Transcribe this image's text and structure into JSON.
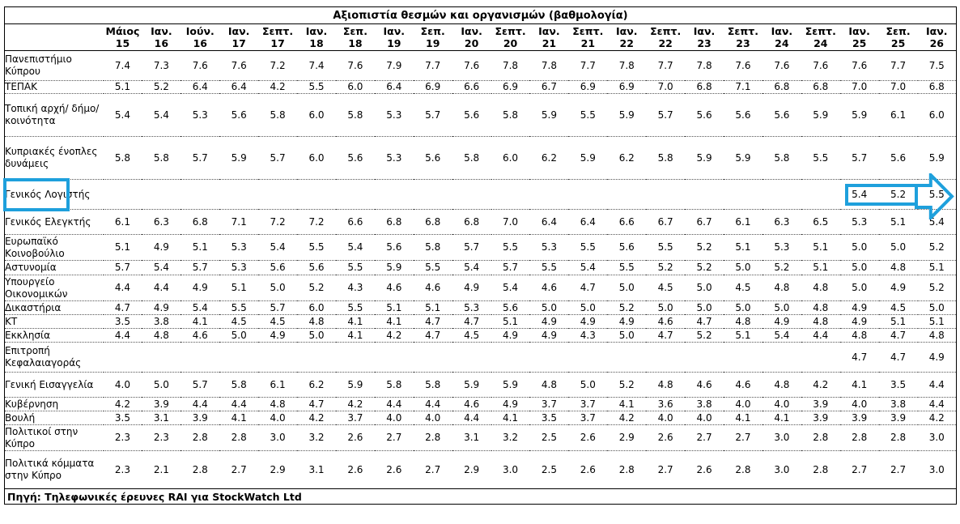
{
  "chart_data": {
    "type": "table",
    "title": "Αξιοπιστία θεσμών και οργανισμών (βαθμολογία)",
    "source": "Πηγή: Τηλεφωνικές έρευνες RAI για StockWatch Ltd",
    "columns": [
      {
        "l1": "Μάιος",
        "l2": "15"
      },
      {
        "l1": "Ιαν.",
        "l2": "16"
      },
      {
        "l1": "Ιούν.",
        "l2": "16"
      },
      {
        "l1": "Ιαν.",
        "l2": "17"
      },
      {
        "l1": "Σεπτ.",
        "l2": "17"
      },
      {
        "l1": "Ιαν.",
        "l2": "18"
      },
      {
        "l1": "Σεπ.",
        "l2": "18"
      },
      {
        "l1": "Ιαν.",
        "l2": "19"
      },
      {
        "l1": "Σεπ.",
        "l2": "19"
      },
      {
        "l1": "Ιαν.",
        "l2": "20"
      },
      {
        "l1": "Σεπτ.",
        "l2": "20"
      },
      {
        "l1": "Ιαν.",
        "l2": "21"
      },
      {
        "l1": "Σεπτ.",
        "l2": "21"
      },
      {
        "l1": "Ιαν.",
        "l2": "22"
      },
      {
        "l1": "Σεπτ.",
        "l2": "22"
      },
      {
        "l1": "Ιαν.",
        "l2": "23"
      },
      {
        "l1": "Σεπτ.",
        "l2": "23"
      },
      {
        "l1": "Ιαν.",
        "l2": "24"
      },
      {
        "l1": "Σεπτ.",
        "l2": "24"
      },
      {
        "l1": "Ιαν.",
        "l2": "25"
      },
      {
        "l1": "Σεπ.",
        "l2": "25"
      },
      {
        "l1": "Ιαν.",
        "l2": "26"
      }
    ],
    "rows": [
      {
        "label": "Πανεπιστήμιο Κύπρου",
        "values": [
          "7.4",
          "7.3",
          "7.6",
          "7.6",
          "7.2",
          "7.4",
          "7.6",
          "7.9",
          "7.7",
          "7.6",
          "7.8",
          "7.8",
          "7.7",
          "7.8",
          "7.7",
          "7.8",
          "7.6",
          "7.6",
          "7.6",
          "7.6",
          "7.7",
          "7.5"
        ]
      },
      {
        "label": "ΤΕΠΑΚ",
        "values": [
          "5.1",
          "5.2",
          "6.4",
          "6.4",
          "4.2",
          "5.5",
          "6.0",
          "6.4",
          "6.9",
          "6.6",
          "6.9",
          "6.7",
          "6.9",
          "6.9",
          "7.0",
          "6.8",
          "7.1",
          "6.8",
          "6.8",
          "7.0",
          "7.0",
          "6.8"
        ]
      },
      {
        "label": "Τοπική αρχή/ δήμο/ κοινότητα",
        "values": [
          "5.4",
          "5.4",
          "5.3",
          "5.6",
          "5.8",
          "6.0",
          "5.8",
          "5.3",
          "5.7",
          "5.6",
          "5.8",
          "5.9",
          "5.5",
          "5.9",
          "5.7",
          "5.6",
          "5.6",
          "5.6",
          "5.9",
          "5.9",
          "6.1",
          "6.0"
        ]
      },
      {
        "label": "Κυπριακές ένοπλες δυνάμεις",
        "values": [
          "5.8",
          "5.8",
          "5.7",
          "5.9",
          "5.7",
          "6.0",
          "5.6",
          "5.3",
          "5.6",
          "5.8",
          "6.0",
          "6.2",
          "5.9",
          "6.2",
          "5.8",
          "5.9",
          "5.9",
          "5.8",
          "5.5",
          "5.7",
          "5.6",
          "5.9"
        ]
      },
      {
        "label": "Γενικός Λογιστής",
        "values": [
          "",
          "",
          "",
          "",
          "",
          "",
          "",
          "",
          "",
          "",
          "",
          "",
          "",
          "",
          "",
          "",
          "",
          "",
          "",
          "5.4",
          "5.2",
          "5.5"
        ]
      },
      {
        "label": "Γενικός Ελεγκτής",
        "values": [
          "6.1",
          "6.3",
          "6.8",
          "7.1",
          "7.2",
          "7.2",
          "6.6",
          "6.8",
          "6.8",
          "6.8",
          "7.0",
          "6.4",
          "6.4",
          "6.6",
          "6.7",
          "6.7",
          "6.1",
          "6.3",
          "6.5",
          "5.3",
          "5.1",
          "5.4"
        ]
      },
      {
        "label": "Ευρωπαϊκό Κοινοβούλιο",
        "values": [
          "5.1",
          "4.9",
          "5.1",
          "5.3",
          "5.4",
          "5.5",
          "5.4",
          "5.6",
          "5.8",
          "5.7",
          "5.5",
          "5.3",
          "5.5",
          "5.6",
          "5.5",
          "5.2",
          "5.1",
          "5.3",
          "5.1",
          "5.0",
          "5.0",
          "5.2"
        ]
      },
      {
        "label": "Αστυνομία",
        "values": [
          "5.7",
          "5.4",
          "5.7",
          "5.3",
          "5.6",
          "5.6",
          "5.5",
          "5.9",
          "5.5",
          "5.4",
          "5.7",
          "5.5",
          "5.4",
          "5.5",
          "5.2",
          "5.2",
          "5.0",
          "5.2",
          "5.1",
          "5.0",
          "4.8",
          "5.1"
        ]
      },
      {
        "label": "Υπουργείο Οικονομικών",
        "values": [
          "4.4",
          "4.4",
          "4.9",
          "5.1",
          "5.0",
          "5.2",
          "4.3",
          "4.6",
          "4.6",
          "4.9",
          "5.4",
          "4.6",
          "4.7",
          "5.0",
          "4.5",
          "5.0",
          "4.5",
          "4.8",
          "4.8",
          "5.0",
          "4.9",
          "5.2"
        ]
      },
      {
        "label": "Δικαστήρια",
        "values": [
          "4.7",
          "4.9",
          "5.4",
          "5.5",
          "5.7",
          "6.0",
          "5.5",
          "5.1",
          "5.1",
          "5.3",
          "5.6",
          "5.0",
          "5.0",
          "5.2",
          "5.0",
          "5.0",
          "5.0",
          "5.0",
          "4.8",
          "4.9",
          "4.5",
          "5.0"
        ]
      },
      {
        "label": "ΚΤ",
        "values": [
          "3.5",
          "3.8",
          "4.1",
          "4.5",
          "4.5",
          "4.8",
          "4.1",
          "4.1",
          "4.7",
          "4.7",
          "5.1",
          "4.9",
          "4.9",
          "4.9",
          "4.6",
          "4.7",
          "4.8",
          "4.9",
          "4.8",
          "4.9",
          "5.1",
          "5.1"
        ]
      },
      {
        "label": "Εκκλησία",
        "values": [
          "4.4",
          "4.8",
          "4.6",
          "5.0",
          "4.9",
          "5.0",
          "4.1",
          "4.2",
          "4.7",
          "4.5",
          "4.9",
          "4.9",
          "4.3",
          "5.0",
          "4.7",
          "5.2",
          "5.1",
          "5.4",
          "4.4",
          "4.8",
          "4.7",
          "4.8"
        ]
      },
      {
        "label": "Επιτροπή Κεφαλαιαγοράς",
        "values": [
          "",
          "",
          "",
          "",
          "",
          "",
          "",
          "",
          "",
          "",
          "",
          "",
          "",
          "",
          "",
          "",
          "",
          "",
          "",
          "4.7",
          "4.7",
          "4.9"
        ]
      },
      {
        "label": "Γενική Εισαγγελία",
        "values": [
          "4.0",
          "5.0",
          "5.7",
          "5.8",
          "6.1",
          "6.2",
          "5.9",
          "5.8",
          "5.8",
          "5.9",
          "5.9",
          "4.8",
          "5.0",
          "5.2",
          "4.8",
          "4.6",
          "4.6",
          "4.8",
          "4.2",
          "4.1",
          "3.5",
          "4.4"
        ]
      },
      {
        "label": "Κυβέρνηση",
        "values": [
          "4.2",
          "3.9",
          "4.4",
          "4.4",
          "4.8",
          "4.7",
          "4.2",
          "4.4",
          "4.4",
          "4.6",
          "4.9",
          "3.7",
          "3.7",
          "4.1",
          "3.6",
          "3.8",
          "4.0",
          "4.0",
          "3.9",
          "4.0",
          "3.8",
          "4.4"
        ]
      },
      {
        "label": "Βουλή",
        "values": [
          "3.5",
          "3.1",
          "3.9",
          "4.1",
          "4.0",
          "4.2",
          "3.7",
          "4.0",
          "4.0",
          "4.4",
          "4.1",
          "3.5",
          "3.7",
          "4.2",
          "4.0",
          "4.0",
          "4.1",
          "4.1",
          "3.9",
          "3.9",
          "3.9",
          "4.2"
        ]
      },
      {
        "label": "Πολιτικοί στην Κύπρο",
        "values": [
          "2.3",
          "2.3",
          "2.8",
          "2.8",
          "3.0",
          "3.2",
          "2.6",
          "2.7",
          "2.8",
          "3.1",
          "3.2",
          "2.5",
          "2.6",
          "2.9",
          "2.6",
          "2.7",
          "2.7",
          "3.0",
          "2.8",
          "2.8",
          "2.8",
          "3.0"
        ]
      },
      {
        "label": "Πολιτικά κόμματα στην Κύπρο",
        "values": [
          "2.3",
          "2.1",
          "2.8",
          "2.7",
          "2.9",
          "3.1",
          "2.6",
          "2.6",
          "2.7",
          "2.9",
          "3.0",
          "2.5",
          "2.6",
          "2.8",
          "2.7",
          "2.6",
          "2.8",
          "3.0",
          "2.8",
          "2.7",
          "2.7",
          "3.0"
        ]
      }
    ],
    "highlight": {
      "row": "Γενικός Λογιστής",
      "color": "#1ea0dc"
    }
  }
}
